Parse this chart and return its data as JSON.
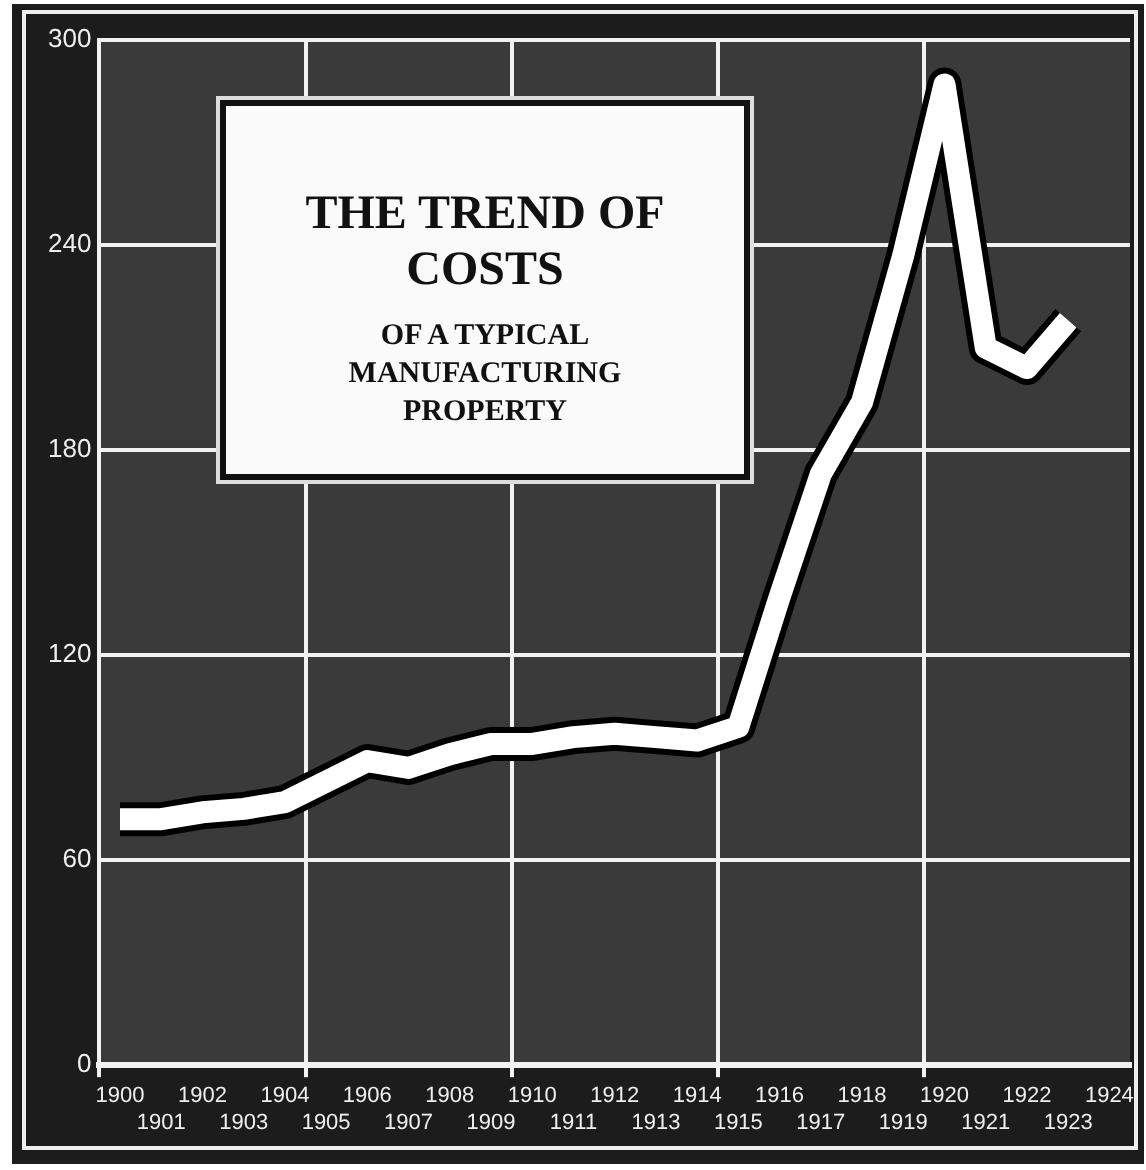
{
  "chart_data": {
    "type": "line",
    "title": "THE TREND OF COSTS",
    "subtitle": "OF A TYPICAL MANUFACTURING PROPERTY",
    "categories": [
      "1900",
      "1901",
      "1902",
      "1903",
      "1904",
      "1905",
      "1906",
      "1907",
      "1908",
      "1909",
      "1910",
      "1911",
      "1912",
      "1913",
      "1914",
      "1915",
      "1916",
      "1917",
      "1918",
      "1919",
      "1920",
      "1921",
      "1922",
      "1923",
      "1924"
    ],
    "series": [
      {
        "color": "#ffffff",
        "values": [
          72,
          72,
          74,
          75,
          77,
          83,
          89,
          87,
          91,
          94,
          94,
          96,
          97,
          96,
          95,
          99,
          137,
          173,
          194,
          237,
          287,
          210,
          204,
          218,
          null
        ]
      }
    ],
    "ylim": [
      0,
      300
    ],
    "yticks": [
      0,
      60,
      120,
      180,
      240,
      300
    ],
    "grid": true,
    "marker": "none",
    "line_style": "solid"
  }
}
